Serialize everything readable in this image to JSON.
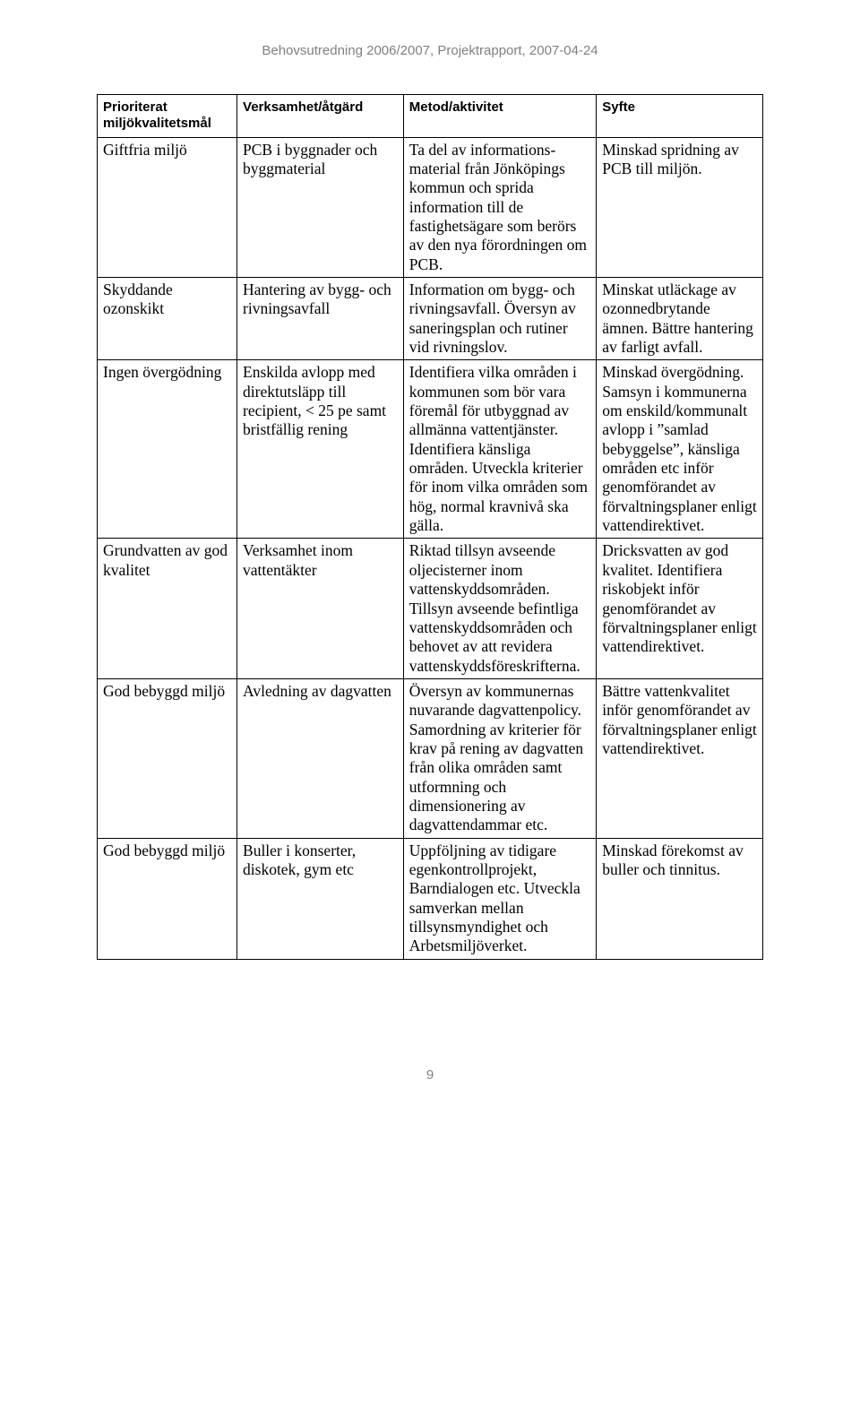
{
  "running_header": "Behovsutredning 2006/2007, Projektrapport, 2007-04-24",
  "page_number": "9",
  "table": {
    "columns": [
      "Prioriterat miljökvalitetsmål",
      "Verksamhet/åtgärd",
      "Metod/aktivitet",
      "Syfte"
    ],
    "rows": [
      {
        "c0": "Giftfria miljö",
        "c1": "PCB i byggnader och byggmaterial",
        "c2": "Ta del av informations­material från Jönköpings kommun och sprida information till de fastighetsägare som berörs av den nya förordningen om PCB.",
        "c3": "Minskad spridning av PCB till miljön."
      },
      {
        "c0": "Skyddande ozonskikt",
        "c1": "Hantering av bygg- och rivningsavfall",
        "c2": "Information om bygg- och rivningsavfall. Översyn av saneringsplan och rutiner vid rivnings­lov.",
        "c3": "Minskat utläckage av ozonnedbrytande ämnen. Bättre hantering av farligt avfall."
      },
      {
        "c0": "Ingen övergödning",
        "c1": "Enskilda avlopp med direktutsläpp till recipient, < 25 pe samt bristfällig rening",
        "c2": "Identifiera vilka områden i kommunen som bör vara föremål för utbyggnad av allmänna vattentjänster. Identifiera känsliga områden. Utveckla kriterier för inom vilka områden som hög, normal kravnivå ska gälla.",
        "c3": "Minskad övergödning. Samsyn i kommunerna om enskild/kommunalt avlopp i ”samlad bebyggelse”, känsliga områden etc inför genomförandet av förvaltningsplaner enligt vattendirektivet."
      },
      {
        "c0": "Grundvatten av god kvalitet",
        "c1": "Verksamhet inom vattentäkter",
        "c2": "Riktad tillsyn avseende oljecisterner inom vattenskyddsområden. Tillsyn avseende befintliga vattenskyddsområden och behovet av att revidera vattenskyddsföreskrifterna.",
        "c3": "Dricksvatten av god kvalitet. Identifiera riskobjekt inför genomförandet av förvaltningsplaner enligt vattendirektivet."
      },
      {
        "c0": "God bebyggd miljö",
        "c1": "Avledning av dagvatten",
        "c2": "Översyn av kommunernas nuvarande dagvatten­policy. Samordning av kriterier för krav på rening av dagvatten från olika områden samt utformning och dimensionering av dagvattendammar etc.",
        "c3": "Bättre vattenkvalitet inför genomförandet av förvaltningsplaner enligt vattendirektivet."
      },
      {
        "c0": "God bebyggd miljö",
        "c1": "Buller i konserter, diskotek, gym etc",
        "c2": "Uppföljning av tidigare egenkontrollprojekt, Barndialogen etc. Utveckla samverkan mellan tillsynsmyndighet och Arbetsmiljöverket.",
        "c3": "Minskad förekomst av buller och tinnitus."
      }
    ]
  }
}
